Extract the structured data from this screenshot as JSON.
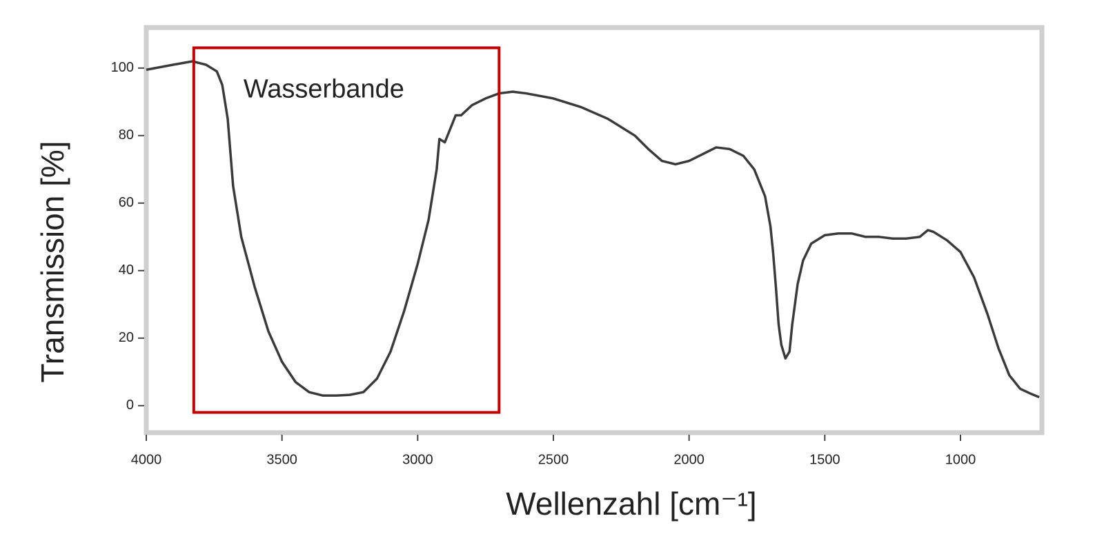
{
  "chart_data": {
    "type": "line",
    "xlabel": "Wellenzahl [cm⁻¹]",
    "ylabel": "Transmission [%]",
    "annotation": {
      "text": "Wasserbande",
      "x": [
        3825,
        2700
      ],
      "y": [
        -2,
        106
      ],
      "color": "#c00000"
    },
    "x": [
      4000,
      3900,
      3830,
      3780,
      3740,
      3720,
      3700,
      3680,
      3650,
      3600,
      3550,
      3500,
      3450,
      3400,
      3350,
      3300,
      3250,
      3200,
      3150,
      3100,
      3050,
      3000,
      2960,
      2940,
      2930,
      2920,
      2900,
      2880,
      2860,
      2840,
      2800,
      2750,
      2700,
      2650,
      2600,
      2500,
      2400,
      2300,
      2200,
      2150,
      2100,
      2050,
      2000,
      1950,
      1900,
      1850,
      1800,
      1760,
      1720,
      1700,
      1690,
      1680,
      1670,
      1660,
      1645,
      1630,
      1620,
      1600,
      1580,
      1550,
      1500,
      1450,
      1400,
      1350,
      1300,
      1250,
      1200,
      1150,
      1120,
      1100,
      1050,
      1000,
      950,
      900,
      860,
      820,
      780,
      740,
      710
    ],
    "series": [
      {
        "color": "#3a3a3a",
        "values": [
          99.5,
          101,
          102,
          101,
          99,
          95,
          85,
          65,
          50,
          35,
          22,
          13,
          7,
          4,
          3,
          3,
          3.2,
          4,
          8,
          16,
          28,
          42,
          55,
          65,
          70,
          79,
          78,
          82,
          86,
          86,
          89,
          91,
          92.5,
          93,
          92.5,
          91,
          88.5,
          85,
          80,
          76,
          72.5,
          71.5,
          72.5,
          74.5,
          76.5,
          76,
          74,
          70,
          62,
          53,
          45,
          35,
          24,
          18,
          14,
          16,
          24,
          36,
          43,
          48,
          50.5,
          51,
          51,
          50,
          50,
          49.5,
          49.5,
          50,
          52,
          51.5,
          49,
          45.5,
          38,
          27,
          17,
          9,
          5,
          3.5,
          2.5
        ]
      }
    ],
    "xlim": [
      4000,
      700
    ],
    "ylim": [
      -8,
      112
    ],
    "xticks": [
      4000,
      3500,
      3000,
      2500,
      2000,
      1500,
      1000
    ],
    "yticks": [
      0,
      20,
      40,
      60,
      80,
      100
    ]
  }
}
